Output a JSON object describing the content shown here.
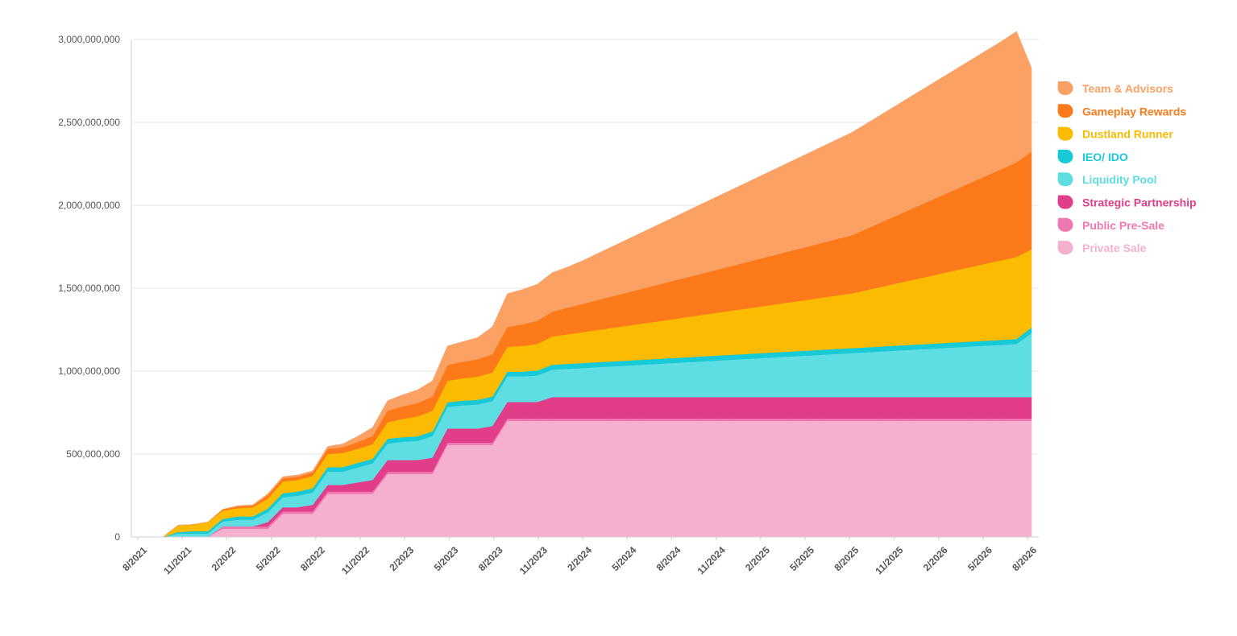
{
  "chart_data": {
    "type": "area",
    "stacked": true,
    "grid": true,
    "legend_position": "right",
    "ylim": [
      0,
      3000000000
    ],
    "y_ticks": [
      0,
      500000000,
      1000000000,
      1500000000,
      2000000000,
      2500000000,
      3000000000
    ],
    "y_tick_labels": [
      "0",
      "500,000,000",
      "1,000,000,000",
      "1,500,000,000",
      "2,000,000,000",
      "2,500,000,000",
      "3,000,000,000"
    ],
    "x_tick_labels": [
      "8/2021",
      "11/2021",
      "2/2022",
      "5/2022",
      "8/2022",
      "11/2022",
      "2/2023",
      "5/2023",
      "8/2023",
      "11/2023",
      "2/2024",
      "5/2024",
      "8/2024",
      "11/2024",
      "2/2025",
      "5/2025",
      "8/2025",
      "11/2025",
      "2/2026",
      "5/2026",
      "8/2026"
    ],
    "x": [
      "8/2021",
      "9/2021",
      "10/2021",
      "11/2021",
      "12/2021",
      "1/2022",
      "2/2022",
      "3/2022",
      "4/2022",
      "5/2022",
      "6/2022",
      "7/2022",
      "8/2022",
      "9/2022",
      "10/2022",
      "11/2022",
      "12/2022",
      "1/2023",
      "2/2023",
      "3/2023",
      "4/2023",
      "5/2023",
      "6/2023",
      "7/2023",
      "8/2023",
      "9/2023",
      "10/2023",
      "11/2023",
      "12/2023",
      "1/2024",
      "2/2024",
      "3/2024",
      "4/2024",
      "5/2024",
      "6/2024",
      "7/2024",
      "8/2024",
      "9/2024",
      "10/2024",
      "11/2024",
      "12/2024",
      "1/2025",
      "2/2025",
      "3/2025",
      "4/2025",
      "5/2025",
      "6/2025",
      "7/2025",
      "8/2025",
      "9/2025",
      "10/2025",
      "11/2025",
      "12/2025",
      "1/2026",
      "2/2026",
      "3/2026",
      "4/2026",
      "5/2026",
      "6/2026",
      "7/2026",
      "8/2026"
    ],
    "series": [
      {
        "name": "Private Sale",
        "color": "#f5b0d0",
        "values": [
          0,
          0,
          0,
          0,
          0,
          0,
          50000000,
          50000000,
          50000000,
          50000000,
          140000000,
          140000000,
          140000000,
          260000000,
          260000000,
          260000000,
          260000000,
          380000000,
          380000000,
          380000000,
          380000000,
          555000000,
          555000000,
          555000000,
          555000000,
          700000000,
          700000000,
          700000000,
          700000000,
          700000000,
          700000000,
          700000000,
          700000000,
          700000000,
          700000000,
          700000000,
          700000000,
          700000000,
          700000000,
          700000000,
          700000000,
          700000000,
          700000000,
          700000000,
          700000000,
          700000000,
          700000000,
          700000000,
          700000000,
          700000000,
          700000000,
          700000000,
          700000000,
          700000000,
          700000000,
          700000000,
          700000000,
          700000000,
          700000000,
          700000000,
          700000000
        ]
      },
      {
        "name": "Public Pre-Sale",
        "color": "#ef78b0",
        "values": [
          0,
          0,
          0,
          0,
          0,
          0,
          14000000,
          14000000,
          14000000,
          14000000,
          14000000,
          14000000,
          14000000,
          14000000,
          14000000,
          14000000,
          14000000,
          14000000,
          14000000,
          14000000,
          14000000,
          14000000,
          14000000,
          14000000,
          14000000,
          14000000,
          14000000,
          14000000,
          14000000,
          14000000,
          14000000,
          14000000,
          14000000,
          14000000,
          14000000,
          14000000,
          14000000,
          14000000,
          14000000,
          14000000,
          14000000,
          14000000,
          14000000,
          14000000,
          14000000,
          14000000,
          14000000,
          14000000,
          14000000,
          14000000,
          14000000,
          14000000,
          14000000,
          14000000,
          14000000,
          14000000,
          14000000,
          14000000,
          14000000,
          14000000,
          14000000
        ]
      },
      {
        "name": "Strategic Partnership",
        "color": "#e23d8a",
        "values": [
          0,
          0,
          0,
          0,
          0,
          0,
          0,
          0,
          0,
          25000000,
          25000000,
          25000000,
          40000000,
          40000000,
          40000000,
          55000000,
          70000000,
          70000000,
          70000000,
          70000000,
          85000000,
          85000000,
          85000000,
          85000000,
          100000000,
          100000000,
          100000000,
          100000000,
          130000000,
          130000000,
          130000000,
          130000000,
          130000000,
          130000000,
          130000000,
          130000000,
          130000000,
          130000000,
          130000000,
          130000000,
          130000000,
          130000000,
          130000000,
          130000000,
          130000000,
          130000000,
          130000000,
          130000000,
          130000000,
          130000000,
          130000000,
          130000000,
          130000000,
          130000000,
          130000000,
          130000000,
          130000000,
          130000000,
          130000000,
          130000000,
          130000000
        ]
      },
      {
        "name": "Liquidity Pool",
        "color": "#5edde2",
        "values": [
          0,
          0,
          0,
          20000000,
          20000000,
          20000000,
          30000000,
          40000000,
          40000000,
          60000000,
          60000000,
          70000000,
          75000000,
          80000000,
          80000000,
          90000000,
          100000000,
          100000000,
          110000000,
          115000000,
          130000000,
          130000000,
          140000000,
          145000000,
          150000000,
          155000000,
          155000000,
          160000000,
          165000000,
          170000000,
          175000000,
          180000000,
          185000000,
          190000000,
          195000000,
          200000000,
          205000000,
          210000000,
          215000000,
          220000000,
          225000000,
          230000000,
          235000000,
          240000000,
          245000000,
          250000000,
          255000000,
          260000000,
          265000000,
          270000000,
          275000000,
          280000000,
          285000000,
          290000000,
          295000000,
          300000000,
          305000000,
          310000000,
          315000000,
          320000000,
          385000000
        ]
      },
      {
        "name": "IEO/ IDO",
        "color": "#18c9d6",
        "values": [
          0,
          0,
          0,
          10000000,
          15000000,
          15000000,
          15000000,
          20000000,
          20000000,
          22000000,
          25000000,
          25000000,
          25000000,
          27000000,
          27000000,
          28000000,
          28000000,
          28000000,
          28000000,
          28000000,
          28000000,
          28000000,
          28000000,
          28000000,
          28000000,
          28000000,
          28000000,
          30000000,
          30000000,
          30000000,
          30000000,
          30000000,
          30000000,
          30000000,
          30000000,
          30000000,
          30000000,
          30000000,
          30000000,
          30000000,
          30000000,
          30000000,
          30000000,
          30000000,
          30000000,
          30000000,
          30000000,
          30000000,
          30000000,
          30000000,
          30000000,
          30000000,
          30000000,
          30000000,
          30000000,
          30000000,
          30000000,
          30000000,
          30000000,
          30000000,
          35000000
        ]
      },
      {
        "name": "Dustland Runner",
        "color": "#fbbb00",
        "values": [
          0,
          0,
          0,
          40000000,
          40000000,
          55000000,
          50000000,
          50000000,
          55000000,
          60000000,
          70000000,
          70000000,
          75000000,
          80000000,
          85000000,
          85000000,
          88000000,
          100000000,
          110000000,
          120000000,
          125000000,
          130000000,
          135000000,
          140000000,
          145000000,
          150000000,
          155000000,
          160000000,
          170000000,
          178000000,
          186000000,
          194000000,
          202000000,
          210000000,
          218000000,
          226000000,
          234000000,
          242000000,
          250000000,
          258000000,
          266000000,
          274000000,
          282000000,
          290000000,
          298000000,
          306000000,
          314000000,
          322000000,
          330000000,
          345000000,
          360000000,
          375000000,
          390000000,
          405000000,
          420000000,
          435000000,
          450000000,
          465000000,
          480000000,
          495000000,
          470000000
        ]
      },
      {
        "name": "Gameplay Rewards",
        "color": "#fd7a1b",
        "values": [
          0,
          0,
          0,
          0,
          0,
          0,
          8000000,
          10000000,
          10000000,
          20000000,
          20000000,
          20000000,
          20000000,
          30000000,
          35000000,
          40000000,
          50000000,
          70000000,
          75000000,
          80000000,
          85000000,
          95000000,
          100000000,
          105000000,
          110000000,
          120000000,
          130000000,
          140000000,
          150000000,
          160000000,
          170000000,
          180000000,
          190000000,
          200000000,
          210000000,
          220000000,
          230000000,
          240000000,
          250000000,
          260000000,
          270000000,
          280000000,
          290000000,
          300000000,
          310000000,
          320000000,
          330000000,
          340000000,
          350000000,
          370000000,
          390000000,
          410000000,
          430000000,
          450000000,
          470000000,
          490000000,
          510000000,
          530000000,
          550000000,
          570000000,
          590000000
        ]
      },
      {
        "name": "Team & Advisors",
        "color": "#fca164",
        "values": [
          0,
          0,
          0,
          0,
          0,
          0,
          0,
          5000000,
          5000000,
          10000000,
          10000000,
          10000000,
          10000000,
          15000000,
          20000000,
          35000000,
          50000000,
          60000000,
          70000000,
          80000000,
          95000000,
          115000000,
          120000000,
          130000000,
          165000000,
          200000000,
          210000000,
          220000000,
          235000000,
          245000000,
          260000000,
          280000000,
          300000000,
          320000000,
          340000000,
          360000000,
          380000000,
          400000000,
          420000000,
          440000000,
          460000000,
          480000000,
          500000000,
          520000000,
          540000000,
          560000000,
          580000000,
          600000000,
          620000000,
          635000000,
          650000000,
          665000000,
          680000000,
          695000000,
          710000000,
          725000000,
          740000000,
          755000000,
          770000000,
          790000000,
          505000000
        ]
      }
    ]
  }
}
